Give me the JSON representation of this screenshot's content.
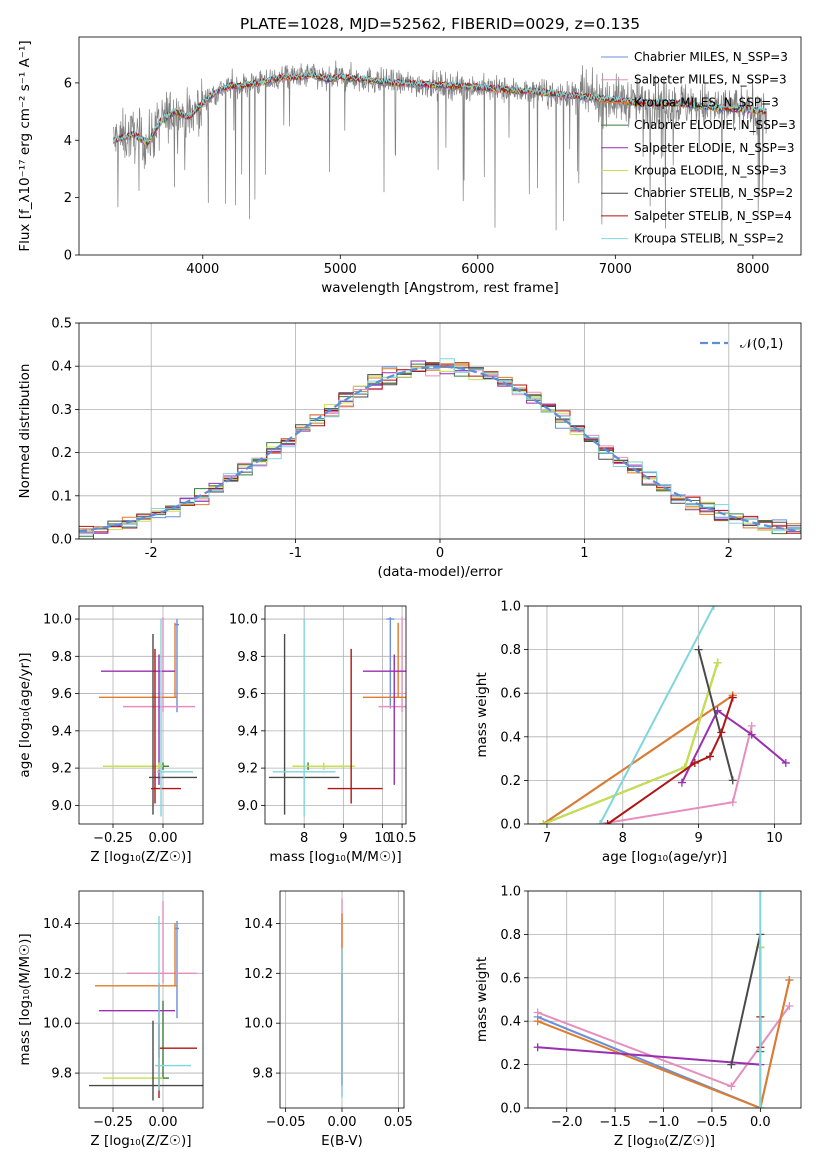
{
  "title": "PLATE=1028, MJD=52562, FIBERID=0029, z=0.135",
  "colors": {
    "chabrier_miles": "#6a8fd8",
    "salpeter_miles": "#e58fbf",
    "kroupa_miles": "#e07b2a",
    "chabrier_elodie": "#3c7d3c",
    "salpeter_elodie": "#9a2fb0",
    "kroupa_elodie": "#c8e04a",
    "chabrier_stelib": "#4a4a4a",
    "salpeter_stelib": "#b01515",
    "kroupa_stelib": "#7fd6dd",
    "data": "#808080",
    "normal": "#5b8fd6"
  },
  "chart_data": [
    {
      "type": "line",
      "name": "spectrum",
      "xlabel": "wavelength [Angstrom, rest frame]",
      "ylabel": "Flux [f_λ10⁻¹⁷ erg cm⁻² s⁻¹ A⁻¹]",
      "xlim": [
        3100,
        8350
      ],
      "ylim": [
        0,
        7.6
      ],
      "xticks": [
        4000,
        5000,
        6000,
        7000,
        8000
      ],
      "yticks": [
        0,
        2,
        4,
        6
      ],
      "grid": false,
      "legend_position": "right",
      "legend": [
        {
          "label": "Chabrier MILES, N_SSP=3",
          "color": "chabrier_miles"
        },
        {
          "label": "Salpeter MILES, N_SSP=3",
          "color": "salpeter_miles"
        },
        {
          "label": "Kroupa MILES, N_SSP=3",
          "color": "kroupa_miles"
        },
        {
          "label": "Chabrier ELODIE, N_SSP=3",
          "color": "chabrier_elodie"
        },
        {
          "label": "Salpeter ELODIE, N_SSP=3",
          "color": "salpeter_elodie"
        },
        {
          "label": "Kroupa ELODIE, N_SSP=3",
          "color": "kroupa_elodie"
        },
        {
          "label": "Chabrier STELIB, N_SSP=2",
          "color": "chabrier_stelib"
        },
        {
          "label": "Salpeter STELIB, N_SSP=4",
          "color": "salpeter_stelib"
        },
        {
          "label": "Kroupa STELIB, N_SSP=2",
          "color": "kroupa_stelib"
        }
      ],
      "continuum": {
        "x": [
          3350,
          3500,
          3600,
          3700,
          3800,
          3900,
          4000,
          4100,
          4200,
          4300,
          4400,
          4500,
          4600,
          4700,
          4800,
          4900,
          5000,
          5200,
          5400,
          5600,
          5800,
          6000,
          6200,
          6400,
          6600,
          6800,
          7000,
          7200,
          7400,
          7600,
          7800,
          8000,
          8100
        ],
        "y": [
          4.0,
          4.2,
          3.9,
          4.7,
          5.0,
          4.8,
          5.3,
          5.7,
          5.9,
          5.9,
          6.0,
          6.1,
          6.2,
          6.2,
          6.3,
          6.1,
          6.2,
          6.1,
          6.0,
          5.95,
          5.9,
          5.85,
          5.75,
          5.7,
          5.6,
          5.5,
          5.4,
          5.3,
          5.3,
          5.2,
          5.1,
          5.05,
          5.0
        ]
      }
    },
    {
      "type": "histogram",
      "name": "residuals",
      "xlabel": "(data-model)/error",
      "ylabel": "Normed distribution",
      "xlim": [
        -2.5,
        2.5
      ],
      "ylim": [
        0,
        0.5
      ],
      "xticks": [
        -2,
        -1,
        0,
        1,
        2
      ],
      "yticks": [
        0.0,
        0.1,
        0.2,
        0.3,
        0.4,
        0.5
      ],
      "grid": true,
      "legend_position": "top-right",
      "legend": [
        {
          "label": "𝒩(0,1)",
          "color": "normal"
        }
      ],
      "bin_width": 0.1
    },
    {
      "type": "scatter",
      "name": "age-vs-Z",
      "xlabel": "Z [log₁₀(Z/Z☉)]",
      "ylabel": "age  [log₁₀(age/yr)]",
      "xlim": [
        -0.42,
        0.2
      ],
      "ylim": [
        8.9,
        10.07
      ],
      "xticks": [
        -0.25,
        0.0
      ],
      "xticklabels": [
        "−0.25",
        "0.00"
      ],
      "yticks": [
        9.0,
        9.2,
        9.4,
        9.6,
        9.8,
        10.0
      ],
      "grid": true,
      "points": [
        {
          "x": 0.07,
          "y": 9.97,
          "xerr": [
            0.01,
            0.01
          ],
          "yerr": [
            0.47,
            0.03
          ],
          "color": "chabrier_miles"
        },
        {
          "x": 0.0,
          "y": 9.53,
          "xerr": [
            0.2,
            0.16
          ],
          "yerr": [
            0.03,
            0.48
          ],
          "color": "salpeter_miles"
        },
        {
          "x": 0.06,
          "y": 9.58,
          "xerr": [
            0.38,
            0.01
          ],
          "yerr": [
            0.0,
            0.4
          ],
          "color": "kroupa_miles"
        },
        {
          "x": 0.0,
          "y": 9.21,
          "xerr": [
            0.05,
            0.03
          ],
          "yerr": [
            0.02,
            0.02
          ],
          "color": "chabrier_elodie"
        },
        {
          "x": -0.02,
          "y": 9.72,
          "xerr": [
            0.29,
            0.08
          ],
          "yerr": [
            0.61,
            0.09
          ],
          "color": "salpeter_elodie"
        },
        {
          "x": -0.02,
          "y": 9.21,
          "xerr": [
            0.28,
            0.02
          ],
          "yerr": [
            0.02,
            0.02
          ],
          "color": "kroupa_elodie"
        },
        {
          "x": -0.05,
          "y": 9.15,
          "xerr": [
            0.02,
            0.22
          ],
          "yerr": [
            0.2,
            0.77
          ],
          "color": "chabrier_stelib"
        },
        {
          "x": -0.04,
          "y": 9.09,
          "xerr": [
            0.02,
            0.13
          ],
          "yerr": [
            0.08,
            0.75
          ],
          "color": "salpeter_stelib"
        },
        {
          "x": -0.01,
          "y": 9.18,
          "xerr": [
            0.02,
            0.16
          ],
          "yerr": [
            0.24,
            0.82
          ],
          "color": "kroupa_stelib"
        }
      ]
    },
    {
      "type": "scatter",
      "name": "age-vs-mass",
      "xlabel": "mass [log₁₀(M/M☉)]",
      "ylabel": "",
      "xlim": [
        7.0,
        10.6
      ],
      "ylim": [
        8.9,
        10.07
      ],
      "xticks": [
        8.0,
        9.0,
        10.0,
        10.5
      ],
      "xticklabels": [
        "8",
        "9",
        "10",
        "10.5"
      ],
      "yticks": [
        9.0,
        9.2,
        9.4,
        9.6,
        9.8,
        10.0
      ],
      "grid": true,
      "points": [
        {
          "x": 10.2,
          "y": 10.0,
          "xerr": [
            0.1,
            0.1
          ],
          "yerr": [
            0.48,
            0.01
          ],
          "color": "chabrier_miles"
        },
        {
          "x": 10.5,
          "y": 9.53,
          "xerr": [
            0.6,
            0.9
          ],
          "yerr": [
            0.03,
            0.48
          ],
          "color": "salpeter_miles"
        },
        {
          "x": 10.4,
          "y": 9.58,
          "xerr": [
            0.9,
            0.4
          ],
          "yerr": [
            0.0,
            0.4
          ],
          "color": "kroupa_miles"
        },
        {
          "x": 8.1,
          "y": 9.21,
          "xerr": [
            0.3,
            0.3
          ],
          "yerr": [
            0.02,
            0.02
          ],
          "color": "chabrier_elodie"
        },
        {
          "x": 10.3,
          "y": 9.72,
          "xerr": [
            0.8,
            0.3
          ],
          "yerr": [
            0.61,
            0.09
          ],
          "color": "salpeter_elodie"
        },
        {
          "x": 8.5,
          "y": 9.21,
          "xerr": [
            0.8,
            0.8
          ],
          "yerr": [
            0.02,
            0.02
          ],
          "color": "kroupa_elodie"
        },
        {
          "x": 7.5,
          "y": 9.15,
          "xerr": [
            0.4,
            1.4
          ],
          "yerr": [
            0.2,
            0.77
          ],
          "color": "chabrier_stelib"
        },
        {
          "x": 9.2,
          "y": 9.09,
          "xerr": [
            0.6,
            0.8
          ],
          "yerr": [
            0.08,
            0.75
          ],
          "color": "salpeter_stelib"
        },
        {
          "x": 8.0,
          "y": 9.18,
          "xerr": [
            0.8,
            0.8
          ],
          "yerr": [
            0.24,
            0.82
          ],
          "color": "kroupa_stelib"
        }
      ]
    },
    {
      "type": "line",
      "name": "mass-weight-vs-age",
      "xlabel": "age  [log₁₀(age/yr)]",
      "ylabel": "mass weight",
      "xlim": [
        6.75,
        10.35
      ],
      "ylim": [
        0,
        1.0
      ],
      "xticks": [
        7,
        8,
        9,
        10
      ],
      "yticks": [
        0.0,
        0.2,
        0.4,
        0.6,
        0.8,
        1.0
      ],
      "grid": true,
      "series": [
        {
          "color": "chabrier_miles",
          "x": [
            6.95,
            9.45
          ],
          "y": [
            0.0,
            0.59
          ]
        },
        {
          "color": "salpeter_miles",
          "x": [
            7.7,
            9.45,
            9.7
          ],
          "y": [
            0.0,
            0.1,
            0.45
          ]
        },
        {
          "color": "kroupa_miles",
          "x": [
            6.95,
            9.45
          ],
          "y": [
            0.0,
            0.59
          ]
        },
        {
          "color": "chabrier_elodie",
          "x": [
            6.95,
            8.82,
            9.25
          ],
          "y": [
            0.0,
            0.26,
            0.74
          ]
        },
        {
          "color": "salpeter_elodie",
          "x": [
            8.78,
            9.25,
            9.7,
            10.15
          ],
          "y": [
            0.19,
            0.52,
            0.41,
            0.28
          ]
        },
        {
          "color": "kroupa_elodie",
          "x": [
            6.95,
            8.82,
            9.25
          ],
          "y": [
            0.0,
            0.26,
            0.74
          ]
        },
        {
          "color": "chabrier_stelib",
          "x": [
            9.0,
            9.45
          ],
          "y": [
            0.8,
            0.2
          ]
        },
        {
          "color": "salpeter_stelib",
          "x": [
            7.8,
            8.95,
            9.15,
            9.3,
            9.45
          ],
          "y": [
            0.0,
            0.28,
            0.31,
            0.42,
            0.58
          ]
        },
        {
          "color": "kroupa_stelib",
          "x": [
            7.7,
            9.2
          ],
          "y": [
            0.0,
            1.0
          ]
        }
      ]
    },
    {
      "type": "scatter",
      "name": "mass-vs-Z",
      "xlabel": "Z [log₁₀(Z/Z☉)]",
      "ylabel": "mass [log₁₀(M/M☉)]",
      "xlim": [
        -0.42,
        0.2
      ],
      "ylim": [
        9.66,
        10.53
      ],
      "xticks": [
        -0.25,
        0.0
      ],
      "xticklabels": [
        "−0.25",
        "0.00"
      ],
      "yticks": [
        9.8,
        10.0,
        10.2,
        10.4
      ],
      "grid": true,
      "points": [
        {
          "x": 0.07,
          "y": 10.38,
          "xerr": [
            0.01,
            0.01
          ],
          "yerr": [
            0.36,
            0.03
          ],
          "color": "chabrier_miles"
        },
        {
          "x": 0.0,
          "y": 10.2,
          "xerr": [
            0.18,
            0.17
          ],
          "yerr": [
            0.04,
            0.29
          ],
          "color": "salpeter_miles"
        },
        {
          "x": 0.06,
          "y": 10.15,
          "xerr": [
            0.4,
            0.01
          ],
          "yerr": [
            0.0,
            0.25
          ],
          "color": "kroupa_miles"
        },
        {
          "x": 0.0,
          "y": 9.78,
          "xerr": [
            0.05,
            0.03
          ],
          "yerr": [
            0.0,
            0.31
          ],
          "color": "chabrier_elodie"
        },
        {
          "x": -0.02,
          "y": 10.05,
          "xerr": [
            0.3,
            0.08
          ],
          "yerr": [
            0.19,
            0.11
          ],
          "color": "salpeter_elodie"
        },
        {
          "x": -0.02,
          "y": 9.78,
          "xerr": [
            0.28,
            0.02
          ],
          "yerr": [
            0.0,
            0.0
          ],
          "color": "kroupa_elodie"
        },
        {
          "x": -0.05,
          "y": 9.75,
          "xerr": [
            0.32,
            0.25
          ],
          "yerr": [
            0.06,
            0.26
          ],
          "color": "chabrier_stelib"
        },
        {
          "x": -0.02,
          "y": 9.9,
          "xerr": [
            0.0,
            0.19
          ],
          "yerr": [
            0.2,
            0.1
          ],
          "color": "salpeter_stelib"
        },
        {
          "x": -0.02,
          "y": 9.83,
          "xerr": [
            0.02,
            0.16
          ],
          "yerr": [
            0.1,
            0.6
          ],
          "color": "kroupa_stelib"
        }
      ]
    },
    {
      "type": "scatter",
      "name": "mass-vs-EBV",
      "xlabel": "E(B-V)",
      "ylabel": "",
      "xlim": [
        -0.055,
        0.055
      ],
      "ylim": [
        9.66,
        10.53
      ],
      "xticks": [
        -0.05,
        0.0,
        0.05
      ],
      "xticklabels": [
        "−0.05",
        "0.00",
        "0.05"
      ],
      "yticks": [
        9.8,
        10.0,
        10.2,
        10.4
      ],
      "grid": true,
      "points": [
        {
          "x": 0.0,
          "y": 10.1,
          "xerr": [
            0.0,
            0.0
          ],
          "yerr": [
            0.39,
            0.4
          ],
          "color": "salpeter_miles"
        },
        {
          "x": 0.0,
          "y": 10.1,
          "xerr": [
            0.0,
            0.0
          ],
          "yerr": [
            0.35,
            0.34
          ],
          "color": "kroupa_miles"
        },
        {
          "x": 0.0,
          "y": 10.0,
          "xerr": [
            0.0,
            0.0
          ],
          "yerr": [
            0.25,
            0.2
          ],
          "color": "salpeter_elodie"
        },
        {
          "x": 0.0,
          "y": 10.0,
          "xerr": [
            0.0,
            0.0
          ],
          "yerr": [
            0.3,
            0.3
          ],
          "color": "kroupa_stelib"
        }
      ]
    },
    {
      "type": "line",
      "name": "mass-weight-vs-Z",
      "xlabel": "Z [log₁₀(Z/Z☉)]",
      "ylabel": "mass weight",
      "xlim": [
        -2.4,
        0.42
      ],
      "ylim": [
        0,
        1.0
      ],
      "xticks": [
        -2.0,
        -1.5,
        -1.0,
        -0.5,
        0.0
      ],
      "xticklabels": [
        "−2.0",
        "−1.5",
        "−1.0",
        "−0.5",
        "0.0"
      ],
      "yticks": [
        0.0,
        0.2,
        0.4,
        0.6,
        0.8,
        1.0
      ],
      "grid": true,
      "series": [
        {
          "color": "chabrier_miles",
          "x": [
            -2.3,
            0.0,
            0.3
          ],
          "y": [
            0.42,
            0.0,
            0.59
          ]
        },
        {
          "color": "salpeter_miles",
          "x": [
            -2.3,
            -0.3,
            0.3
          ],
          "y": [
            0.44,
            0.1,
            0.47
          ]
        },
        {
          "color": "kroupa_miles",
          "x": [
            -2.3,
            0.0,
            0.3
          ],
          "y": [
            0.4,
            0.0,
            0.59
          ]
        },
        {
          "color": "chabrier_elodie",
          "x": [
            0.0,
            0.0
          ],
          "y": [
            0.26,
            0.74
          ]
        },
        {
          "color": "salpeter_elodie",
          "x": [
            -2.3,
            0.0
          ],
          "y": [
            0.28,
            0.2
          ]
        },
        {
          "color": "kroupa_elodie",
          "x": [
            0.0,
            0.0
          ],
          "y": [
            0.0,
            0.74
          ]
        },
        {
          "color": "chabrier_stelib",
          "x": [
            -0.3,
            0.0
          ],
          "y": [
            0.2,
            0.8
          ]
        },
        {
          "color": "salpeter_stelib",
          "x": [
            0.0,
            0.0
          ],
          "y": [
            0.28,
            0.42
          ]
        },
        {
          "color": "kroupa_stelib",
          "x": [
            0.0,
            0.0
          ],
          "y": [
            0.0,
            1.0
          ]
        }
      ]
    }
  ]
}
